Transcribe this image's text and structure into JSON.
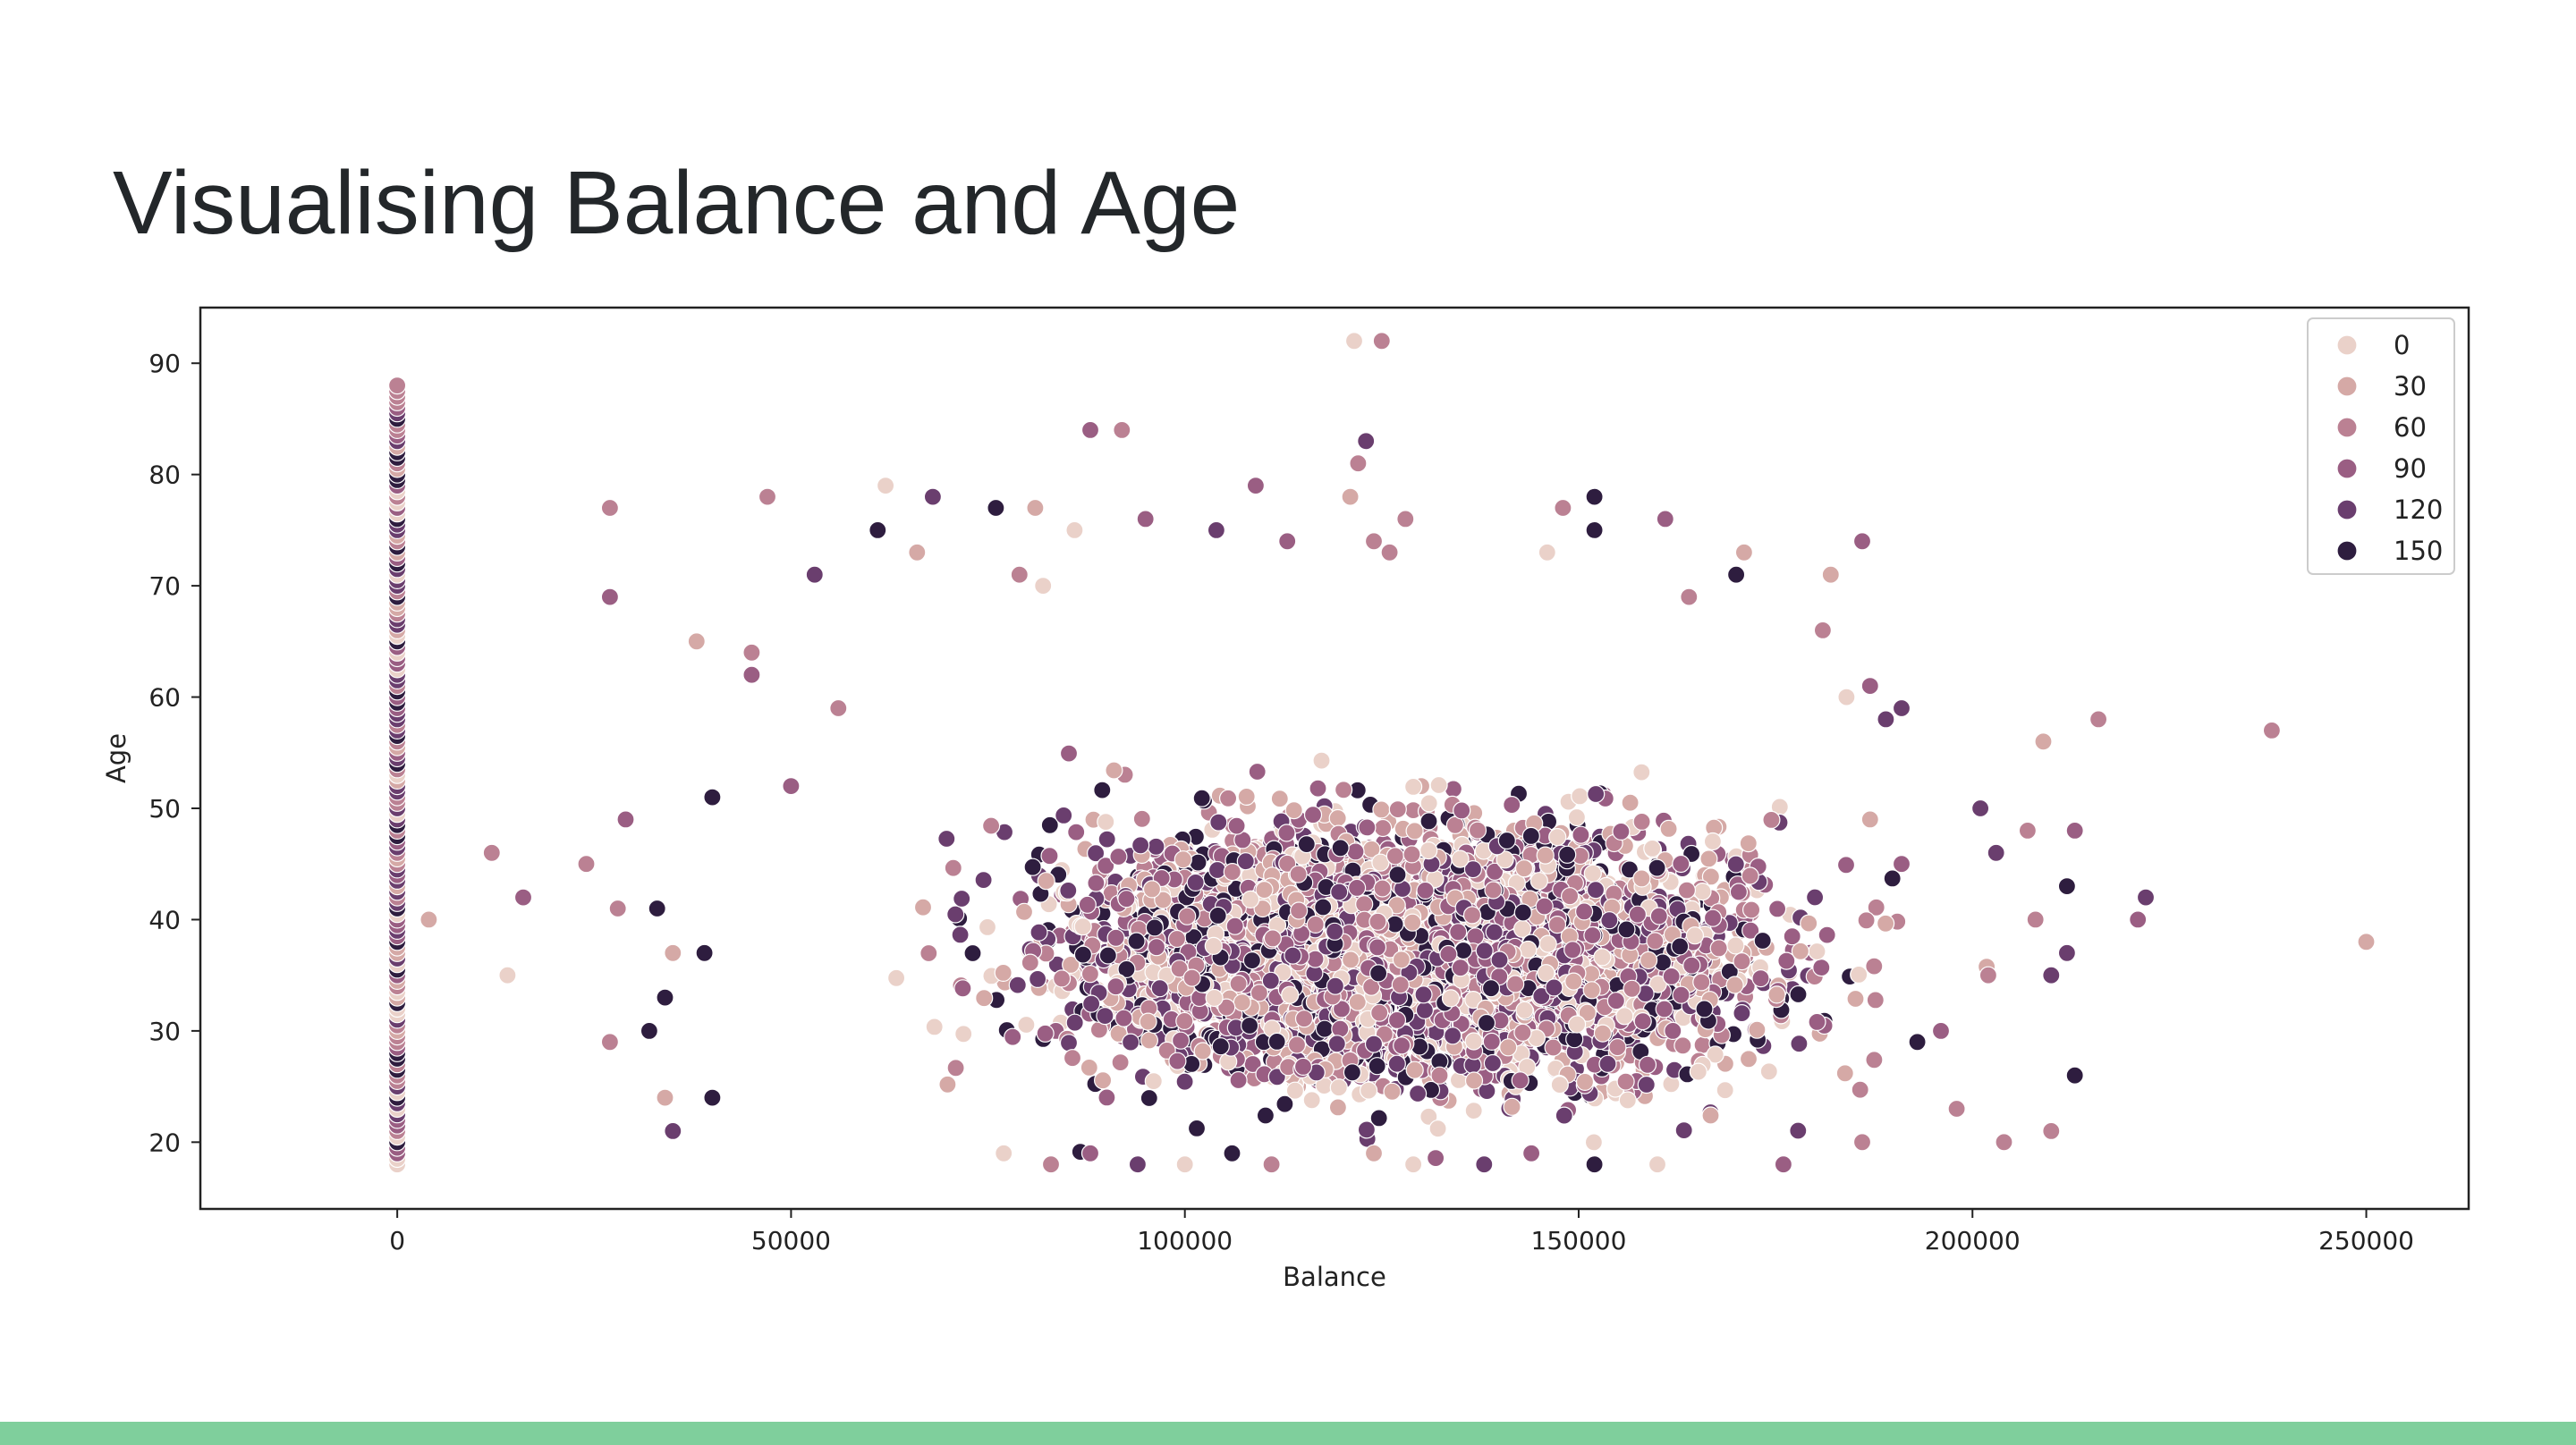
{
  "slide": {
    "title": "Visualising Balance and Age",
    "footer_color": "#7fcf9c"
  },
  "chart_data": {
    "type": "scatter",
    "title": "",
    "xlabel": "Balance",
    "ylabel": "Age",
    "xlim": [
      -25000,
      263000
    ],
    "ylim": [
      14,
      95
    ],
    "xticks": [
      0,
      50000,
      100000,
      150000,
      200000,
      250000
    ],
    "yticks": [
      20,
      30,
      40,
      50,
      60,
      70,
      80,
      90
    ],
    "grid": false,
    "legend_placement": "top-right",
    "hue_legend": [
      {
        "label": "0",
        "color": "#ead1c9"
      },
      {
        "label": "30",
        "color": "#d5a9a6"
      },
      {
        "label": "60",
        "color": "#bb8193"
      },
      {
        "label": "90",
        "color": "#9a5e83"
      },
      {
        "label": "120",
        "color": "#6a3e6e"
      },
      {
        "label": "150",
        "color": "#2e1d3f"
      }
    ],
    "points": [
      [
        125000,
        92,
        2
      ],
      [
        121500,
        92,
        0
      ],
      [
        88000,
        84,
        3
      ],
      [
        92000,
        84,
        2
      ],
      [
        123000,
        83,
        4
      ],
      [
        122000,
        81,
        2
      ],
      [
        109000,
        79,
        3
      ],
      [
        62000,
        79,
        0
      ],
      [
        121000,
        78,
        1
      ],
      [
        152000,
        78,
        5
      ],
      [
        47000,
        78,
        2
      ],
      [
        68000,
        78,
        4
      ],
      [
        27000,
        77,
        2
      ],
      [
        76000,
        77,
        5
      ],
      [
        81000,
        77,
        1
      ],
      [
        148000,
        77,
        2
      ],
      [
        161000,
        76,
        3
      ],
      [
        95000,
        76,
        3
      ],
      [
        128000,
        76,
        2
      ],
      [
        152000,
        75,
        5
      ],
      [
        61000,
        75,
        5
      ],
      [
        104000,
        75,
        4
      ],
      [
        86000,
        75,
        0
      ],
      [
        113000,
        74,
        3
      ],
      [
        124000,
        74,
        2
      ],
      [
        186000,
        74,
        3
      ],
      [
        126000,
        73,
        2
      ],
      [
        171000,
        73,
        1
      ],
      [
        146000,
        73,
        0
      ],
      [
        66000,
        73,
        1
      ],
      [
        53000,
        71,
        4
      ],
      [
        170000,
        71,
        5
      ],
      [
        79000,
        71,
        2
      ],
      [
        27000,
        69,
        3
      ],
      [
        82000,
        70,
        0
      ],
      [
        182000,
        71,
        1
      ],
      [
        164000,
        69,
        2
      ],
      [
        181000,
        66,
        2
      ],
      [
        38000,
        65,
        1
      ],
      [
        45000,
        64,
        2
      ],
      [
        187000,
        61,
        3
      ],
      [
        45000,
        62,
        3
      ],
      [
        56000,
        59,
        2
      ],
      [
        184000,
        60,
        0
      ],
      [
        216000,
        58,
        2
      ],
      [
        238000,
        57,
        2
      ],
      [
        189000,
        58,
        4
      ],
      [
        191000,
        59,
        4
      ],
      [
        50000,
        52,
        3
      ],
      [
        40000,
        51,
        5
      ],
      [
        29000,
        49,
        3
      ],
      [
        187000,
        49,
        1
      ],
      [
        191000,
        45,
        3
      ],
      [
        207000,
        48,
        2
      ],
      [
        201000,
        50,
        4
      ],
      [
        12000,
        46,
        2
      ],
      [
        24000,
        45,
        2
      ],
      [
        209000,
        56,
        1
      ],
      [
        213000,
        48,
        3
      ],
      [
        203000,
        46,
        4
      ],
      [
        222000,
        42,
        4
      ],
      [
        221000,
        40,
        3
      ],
      [
        212000,
        43,
        5
      ],
      [
        208000,
        40,
        2
      ],
      [
        16000,
        42,
        3
      ],
      [
        28000,
        41,
        2
      ],
      [
        250000,
        38,
        1
      ],
      [
        4000,
        40,
        1
      ],
      [
        33000,
        41,
        5
      ],
      [
        212000,
        37,
        4
      ],
      [
        202000,
        35,
        2
      ],
      [
        210000,
        35,
        4
      ],
      [
        14000,
        35,
        0
      ],
      [
        35000,
        37,
        1
      ],
      [
        39000,
        37,
        5
      ],
      [
        32000,
        30,
        5
      ],
      [
        34000,
        33,
        5
      ],
      [
        27000,
        29,
        2
      ],
      [
        196000,
        30,
        3
      ],
      [
        213000,
        26,
        5
      ],
      [
        193000,
        29,
        5
      ],
      [
        198000,
        23,
        2
      ],
      [
        204000,
        20,
        2
      ],
      [
        210000,
        21,
        2
      ],
      [
        34000,
        24,
        1
      ],
      [
        40000,
        24,
        5
      ],
      [
        35000,
        21,
        4
      ],
      [
        77000,
        19,
        0
      ],
      [
        100000,
        18,
        0
      ],
      [
        111000,
        18,
        2
      ],
      [
        129000,
        18,
        0
      ],
      [
        138000,
        18,
        4
      ],
      [
        152000,
        18,
        5
      ],
      [
        160000,
        18,
        0
      ],
      [
        176000,
        18,
        3
      ],
      [
        186000,
        20,
        2
      ],
      [
        83000,
        18,
        2
      ],
      [
        106000,
        19,
        5
      ],
      [
        94000,
        18,
        4
      ],
      [
        144000,
        19,
        3
      ],
      [
        124000,
        19,
        1
      ],
      [
        88000,
        19,
        3
      ]
    ],
    "zero_balance_column": {
      "x": 0,
      "age_range": [
        18,
        88
      ]
    },
    "dense_cloud": {
      "x_range": [
        42000,
        215000
      ],
      "age_range": [
        18,
        76
      ],
      "age_center": 37
    }
  }
}
